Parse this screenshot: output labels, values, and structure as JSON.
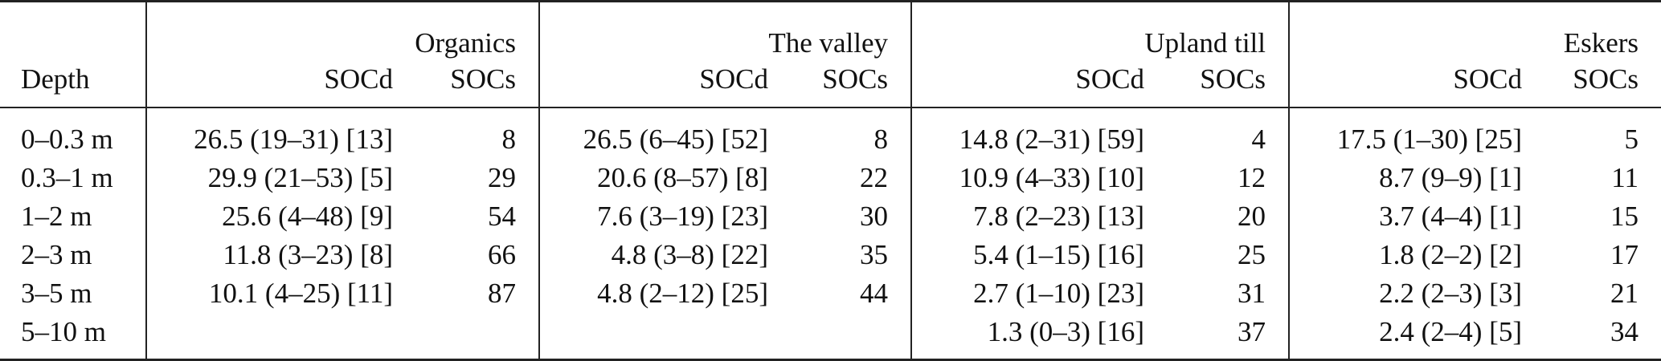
{
  "table": {
    "depth_header": "Depth",
    "groups": [
      {
        "name": "Organics",
        "col1": "SOCd",
        "col2": "SOCs"
      },
      {
        "name": "The valley",
        "col1": "SOCd",
        "col2": "SOCs"
      },
      {
        "name": "Upland till",
        "col1": "SOCd",
        "col2": "SOCs"
      },
      {
        "name": "Eskers",
        "col1": "SOCd",
        "col2": "SOCs"
      }
    ],
    "rows": [
      {
        "depth": "0–0.3 m",
        "cells": [
          {
            "socd": "26.5 (19–31) [13]",
            "socs": "8"
          },
          {
            "socd": "26.5 (6–45) [52]",
            "socs": "8"
          },
          {
            "socd": "14.8 (2–31) [59]",
            "socs": "4"
          },
          {
            "socd": "17.5 (1–30) [25]",
            "socs": "5"
          }
        ]
      },
      {
        "depth": "0.3–1 m",
        "cells": [
          {
            "socd": "29.9 (21–53) [5]",
            "socs": "29"
          },
          {
            "socd": "20.6 (8–57) [8]",
            "socs": "22"
          },
          {
            "socd": "10.9 (4–33) [10]",
            "socs": "12"
          },
          {
            "socd": "8.7 (9–9) [1]",
            "socs": "11"
          }
        ]
      },
      {
        "depth": "1–2 m",
        "cells": [
          {
            "socd": "25.6 (4–48) [9]",
            "socs": "54"
          },
          {
            "socd": "7.6 (3–19) [23]",
            "socs": "30"
          },
          {
            "socd": "7.8 (2–23) [13]",
            "socs": "20"
          },
          {
            "socd": "3.7 (4–4) [1]",
            "socs": "15"
          }
        ]
      },
      {
        "depth": "2–3 m",
        "cells": [
          {
            "socd": "11.8 (3–23) [8]",
            "socs": "66"
          },
          {
            "socd": "4.8 (3–8) [22]",
            "socs": "35"
          },
          {
            "socd": "5.4 (1–15) [16]",
            "socs": "25"
          },
          {
            "socd": "1.8 (2–2) [2]",
            "socs": "17"
          }
        ]
      },
      {
        "depth": "3–5 m",
        "cells": [
          {
            "socd": "10.1 (4–25) [11]",
            "socs": "87"
          },
          {
            "socd": "4.8 (2–12) [25]",
            "socs": "44"
          },
          {
            "socd": "2.7 (1–10) [23]",
            "socs": "31"
          },
          {
            "socd": "2.2 (2–3) [3]",
            "socs": "21"
          }
        ]
      },
      {
        "depth": "5–10 m",
        "cells": [
          {
            "socd": "",
            "socs": ""
          },
          {
            "socd": "",
            "socs": ""
          },
          {
            "socd": "1.3 (0–3) [16]",
            "socs": "37"
          },
          {
            "socd": "2.4 (2–4) [5]",
            "socs": "34"
          }
        ]
      }
    ]
  }
}
